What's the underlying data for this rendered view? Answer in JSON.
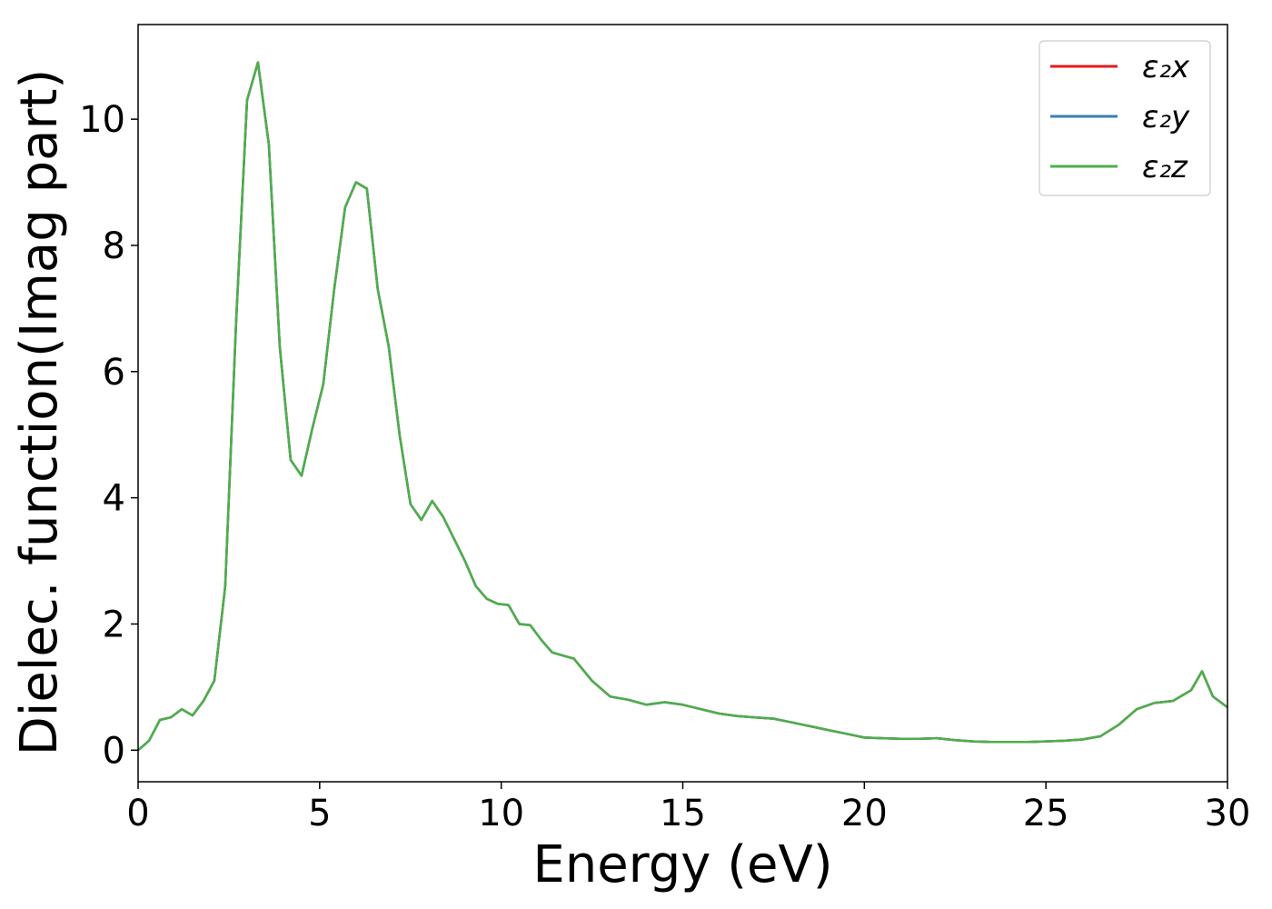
{
  "chart_data": {
    "type": "line",
    "title": "",
    "xlabel": "Energy (eV)",
    "ylabel": "Dielec. function(Imag part)",
    "xlim": [
      0,
      30
    ],
    "ylim": [
      -0.5,
      11.5
    ],
    "xticks": [
      0,
      5,
      10,
      15,
      20,
      25,
      30
    ],
    "xtick_labels": [
      "0",
      "5",
      "10",
      "15",
      "20",
      "25",
      "30"
    ],
    "yticks": [
      0,
      2,
      4,
      6,
      8,
      10
    ],
    "ytick_labels": [
      "0",
      "2",
      "4",
      "6",
      "8",
      "10"
    ],
    "grid": false,
    "legend_position": "top-right",
    "x": [
      0,
      0.3,
      0.6,
      0.9,
      1.2,
      1.5,
      1.8,
      2.1,
      2.4,
      2.7,
      3.0,
      3.3,
      3.6,
      3.9,
      4.2,
      4.5,
      4.8,
      5.1,
      5.4,
      5.7,
      6.0,
      6.3,
      6.6,
      6.9,
      7.2,
      7.5,
      7.8,
      8.1,
      8.4,
      8.7,
      9.0,
      9.3,
      9.6,
      9.9,
      10.2,
      10.5,
      10.8,
      11.1,
      11.4,
      11.7,
      12.0,
      12.5,
      13.0,
      13.5,
      14.0,
      14.5,
      15.0,
      15.5,
      16.0,
      16.5,
      17.0,
      17.5,
      18.0,
      18.5,
      19.0,
      19.5,
      20.0,
      20.5,
      21.0,
      21.5,
      22.0,
      22.5,
      23.0,
      23.5,
      24.0,
      24.5,
      25.0,
      25.5,
      26.0,
      26.5,
      27.0,
      27.5,
      28.0,
      28.5,
      29.0,
      29.3,
      29.6,
      30.0
    ],
    "series": [
      {
        "name": "ε₂x",
        "color": "#e41a1c",
        "values": [
          0.0,
          0.15,
          0.48,
          0.52,
          0.65,
          0.55,
          0.78,
          1.1,
          2.6,
          6.8,
          10.3,
          10.9,
          9.6,
          6.4,
          4.6,
          4.35,
          5.1,
          5.8,
          7.3,
          8.6,
          9.0,
          8.9,
          7.3,
          6.4,
          5.0,
          3.9,
          3.65,
          3.95,
          3.7,
          3.35,
          3.0,
          2.6,
          2.4,
          2.32,
          2.3,
          2.0,
          1.98,
          1.75,
          1.55,
          1.5,
          1.45,
          1.1,
          0.85,
          0.8,
          0.72,
          0.76,
          0.72,
          0.65,
          0.58,
          0.54,
          0.52,
          0.5,
          0.44,
          0.38,
          0.32,
          0.26,
          0.2,
          0.19,
          0.18,
          0.18,
          0.19,
          0.16,
          0.14,
          0.13,
          0.13,
          0.13,
          0.14,
          0.15,
          0.17,
          0.22,
          0.4,
          0.65,
          0.75,
          0.78,
          0.95,
          1.25,
          0.85,
          0.68
        ]
      },
      {
        "name": "ε₂y",
        "color": "#377eb8",
        "values": [
          0.0,
          0.15,
          0.48,
          0.52,
          0.65,
          0.55,
          0.78,
          1.1,
          2.6,
          6.8,
          10.3,
          10.9,
          9.6,
          6.4,
          4.6,
          4.35,
          5.1,
          5.8,
          7.3,
          8.6,
          9.0,
          8.9,
          7.3,
          6.4,
          5.0,
          3.9,
          3.65,
          3.95,
          3.7,
          3.35,
          3.0,
          2.6,
          2.4,
          2.32,
          2.3,
          2.0,
          1.98,
          1.75,
          1.55,
          1.5,
          1.45,
          1.1,
          0.85,
          0.8,
          0.72,
          0.76,
          0.72,
          0.65,
          0.58,
          0.54,
          0.52,
          0.5,
          0.44,
          0.38,
          0.32,
          0.26,
          0.2,
          0.19,
          0.18,
          0.18,
          0.19,
          0.16,
          0.14,
          0.13,
          0.13,
          0.13,
          0.14,
          0.15,
          0.17,
          0.22,
          0.4,
          0.65,
          0.75,
          0.78,
          0.95,
          1.25,
          0.85,
          0.68
        ]
      },
      {
        "name": "ε₂z",
        "color": "#4daf4a",
        "values": [
          0.0,
          0.15,
          0.48,
          0.52,
          0.65,
          0.55,
          0.78,
          1.1,
          2.6,
          6.8,
          10.3,
          10.9,
          9.6,
          6.4,
          4.6,
          4.35,
          5.1,
          5.8,
          7.3,
          8.6,
          9.0,
          8.9,
          7.3,
          6.4,
          5.0,
          3.9,
          3.65,
          3.95,
          3.7,
          3.35,
          3.0,
          2.6,
          2.4,
          2.32,
          2.3,
          2.0,
          1.98,
          1.75,
          1.55,
          1.5,
          1.45,
          1.1,
          0.85,
          0.8,
          0.72,
          0.76,
          0.72,
          0.65,
          0.58,
          0.54,
          0.52,
          0.5,
          0.44,
          0.38,
          0.32,
          0.26,
          0.2,
          0.19,
          0.18,
          0.18,
          0.19,
          0.16,
          0.14,
          0.13,
          0.13,
          0.13,
          0.14,
          0.15,
          0.17,
          0.22,
          0.4,
          0.65,
          0.75,
          0.78,
          0.95,
          1.25,
          0.85,
          0.68
        ]
      }
    ]
  }
}
